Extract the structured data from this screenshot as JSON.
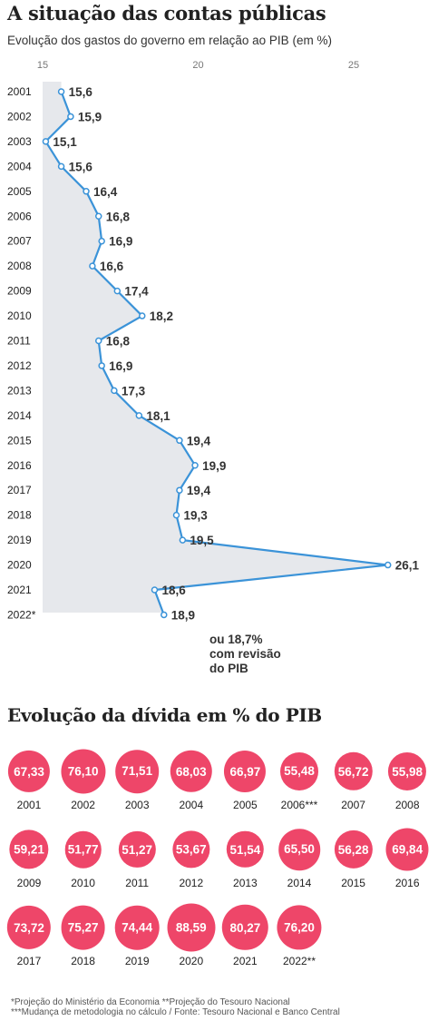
{
  "header": {
    "title": "A situação das contas públicas",
    "subtitle": "Evolução dos gastos do governo em relação ao PIB (em %)"
  },
  "chart_data": {
    "type": "line",
    "orientation": "horizontal",
    "x_ticks": [
      15,
      20,
      25
    ],
    "xlim": [
      15,
      26.1
    ],
    "grid": false,
    "fill": "area",
    "years": [
      "2001",
      "2002",
      "2003",
      "2004",
      "2005",
      "2006",
      "2007",
      "2008",
      "2009",
      "2010",
      "2011",
      "2012",
      "2013",
      "2014",
      "2015",
      "2016",
      "2017",
      "2018",
      "2019",
      "2020",
      "2021",
      "2022*"
    ],
    "values": [
      15.6,
      15.9,
      15.1,
      15.6,
      16.4,
      16.8,
      16.9,
      16.6,
      17.4,
      18.2,
      16.8,
      16.9,
      17.3,
      18.1,
      19.4,
      19.9,
      19.4,
      19.3,
      19.5,
      26.1,
      18.6,
      18.9
    ],
    "labels": [
      "15,6",
      "15,9",
      "15,1",
      "15,6",
      "16,4",
      "16,8",
      "16,9",
      "16,6",
      "17,4",
      "18,2",
      "16,8",
      "16,9",
      "17,3",
      "18,1",
      "19,4",
      "19,9",
      "19,4",
      "19,3",
      "19,5",
      "26,1",
      "18,6",
      "18,9"
    ],
    "annotation": "ou 18,7%\ncom revisão\ndo PIB",
    "colors": {
      "line": "#3b93d8",
      "area": "#e6e8ec",
      "point_fill": "#ffffff"
    }
  },
  "debt": {
    "title": "Evolução da dívida em % do PIB",
    "color": "#ee4669",
    "items": [
      {
        "year": "2001",
        "label": "67,33",
        "value": 67.33
      },
      {
        "year": "2002",
        "label": "76,10",
        "value": 76.1
      },
      {
        "year": "2003",
        "label": "71,51",
        "value": 71.51
      },
      {
        "year": "2004",
        "label": "68,03",
        "value": 68.03
      },
      {
        "year": "2005",
        "label": "66,97",
        "value": 66.97
      },
      {
        "year": "2006***",
        "label": "55,48",
        "value": 55.48
      },
      {
        "year": "2007",
        "label": "56,72",
        "value": 56.72
      },
      {
        "year": "2008",
        "label": "55,98",
        "value": 55.98
      },
      {
        "year": "2009",
        "label": "59,21",
        "value": 59.21
      },
      {
        "year": "2010",
        "label": "51,77",
        "value": 51.77
      },
      {
        "year": "2011",
        "label": "51,27",
        "value": 51.27
      },
      {
        "year": "2012",
        "label": "53,67",
        "value": 53.67
      },
      {
        "year": "2013",
        "label": "51,54",
        "value": 51.54
      },
      {
        "year": "2014",
        "label": "65,50",
        "value": 65.5
      },
      {
        "year": "2015",
        "label": "56,28",
        "value": 56.28
      },
      {
        "year": "2016",
        "label": "69,84",
        "value": 69.84
      },
      {
        "year": "2017",
        "label": "73,72",
        "value": 73.72
      },
      {
        "year": "2018",
        "label": "75,27",
        "value": 75.27
      },
      {
        "year": "2019",
        "label": "74,44",
        "value": 74.44
      },
      {
        "year": "2020",
        "label": "88,59",
        "value": 88.59
      },
      {
        "year": "2021",
        "label": "80,27",
        "value": 80.27
      },
      {
        "year": "2022**",
        "label": "76,20",
        "value": 76.2
      }
    ]
  },
  "footnotes": {
    "line1": "*Projeção do Ministério da Economia  **Projeção do Tesouro Nacional",
    "line2": "***Mudança de metodologia no cálculo / Fonte: Tesouro Nacional e Banco Central"
  }
}
